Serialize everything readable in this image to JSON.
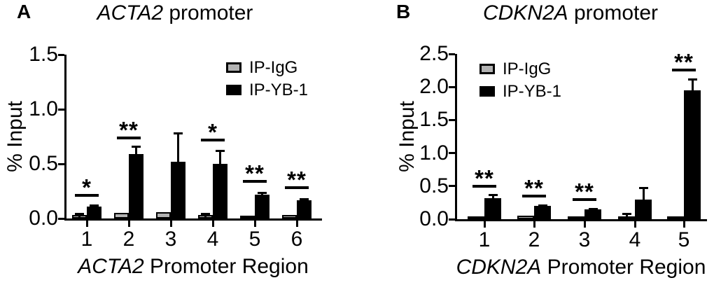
{
  "figure_title": "",
  "chart_data": [
    {
      "panel_label": "A",
      "type": "bar",
      "title_italic": "ACTA2",
      "title_rest": " promoter",
      "ylabel": "% Input",
      "xlabel_italic": "ACTA2",
      "xlabel_rest": " Promoter Region",
      "ylim": [
        0,
        1.5
      ],
      "yticks": [
        0.0,
        0.5,
        1.0,
        1.5
      ],
      "ytick_labels": [
        "0.0",
        "0.5",
        "1.0",
        "1.5"
      ],
      "categories": [
        "1",
        "2",
        "3",
        "4",
        "5",
        "6"
      ],
      "series": [
        {
          "name": "IP-IgG",
          "color": "#b3b3b3",
          "values": [
            0.03,
            0.05,
            0.06,
            0.035,
            0.02,
            0.03
          ],
          "errors": [
            0.015,
            0,
            0,
            0.012,
            0,
            0
          ]
        },
        {
          "name": "IP-YB-1",
          "color": "#000000",
          "values": [
            0.11,
            0.59,
            0.52,
            0.5,
            0.22,
            0.165
          ],
          "errors": [
            0.015,
            0.07,
            0.26,
            0.12,
            0.02,
            0.012
          ]
        }
      ],
      "significance": [
        {
          "category_index": 0,
          "label": "*",
          "line_y": 0.21
        },
        {
          "category_index": 1,
          "label": "**",
          "line_y": 0.74
        },
        {
          "category_index": 3,
          "label": "*",
          "line_y": 0.72
        },
        {
          "category_index": 4,
          "label": "**",
          "line_y": 0.34
        },
        {
          "category_index": 5,
          "label": "**",
          "line_y": 0.28
        }
      ],
      "legend_position": "top-right",
      "grid": false
    },
    {
      "panel_label": "B",
      "type": "bar",
      "title_italic": "CDKN2A",
      "title_rest": " promoter",
      "ylabel": "% Input",
      "xlabel_italic": "CDKN2A",
      "xlabel_rest": " Promoter Region",
      "ylim": [
        0,
        2.5
      ],
      "yticks": [
        0.0,
        0.5,
        1.0,
        1.5,
        2.0,
        2.5
      ],
      "ytick_labels": [
        "0.0",
        "0.5",
        "1.0",
        "1.5",
        "2.0",
        "2.5"
      ],
      "categories": [
        "1",
        "2",
        "3",
        "4",
        "5"
      ],
      "series": [
        {
          "name": "IP-IgG",
          "color": "#b3b3b3",
          "values": [
            0.01,
            0.05,
            0.02,
            0.04,
            0.02
          ],
          "errors": [
            0,
            0,
            0,
            0.045,
            0
          ]
        },
        {
          "name": "IP-YB-1",
          "color": "#000000",
          "values": [
            0.32,
            0.2,
            0.15,
            0.3,
            1.95
          ],
          "errors": [
            0.05,
            0.015,
            0.012,
            0.18,
            0.17
          ]
        }
      ],
      "significance": [
        {
          "category_index": 0,
          "label": "**",
          "line_y": 0.5
        },
        {
          "category_index": 1,
          "label": "**",
          "line_y": 0.35
        },
        {
          "category_index": 2,
          "label": "**",
          "line_y": 0.3
        },
        {
          "category_index": 4,
          "label": "**",
          "line_y": 2.26
        }
      ],
      "legend_position": "top-left",
      "grid": false
    }
  ]
}
